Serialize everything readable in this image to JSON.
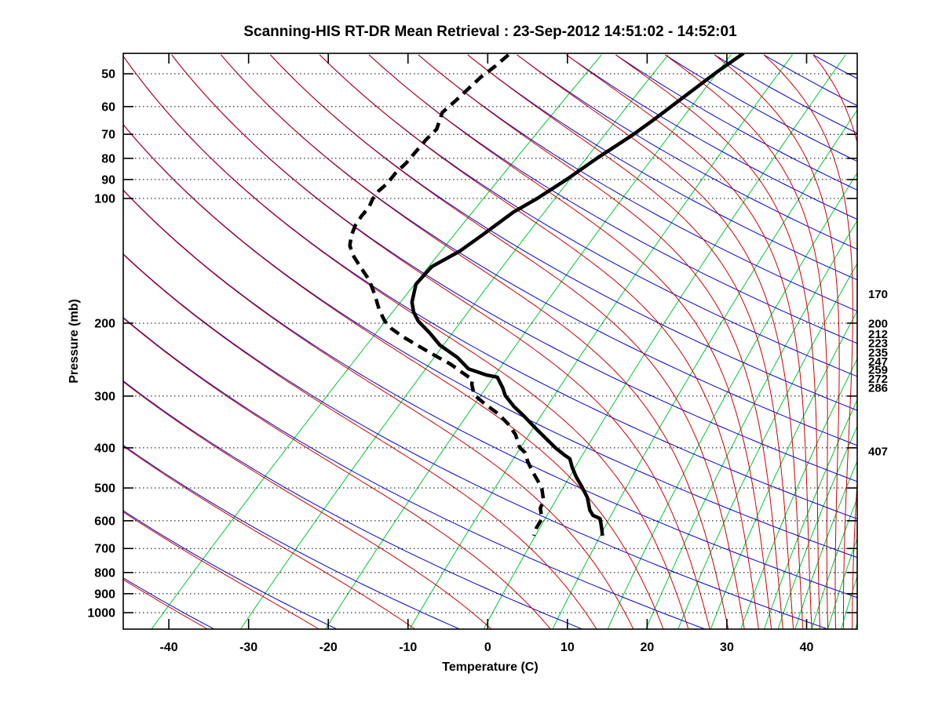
{
  "title": "Scanning-HIS RT-DR Mean Retrieval : 23-Sep-2012 14:51:02 - 14:52:01",
  "axes": {
    "x_label": "Temperature (C)",
    "y_label": "Pressure (mb)",
    "x_ticks": [
      -40,
      -30,
      -20,
      -10,
      0,
      10,
      20,
      30,
      40
    ],
    "y_ticks": [
      50,
      60,
      70,
      80,
      90,
      100,
      200,
      300,
      400,
      500,
      600,
      700,
      800,
      900,
      1000
    ],
    "x_range_C": [
      -45.7,
      46.4
    ],
    "pressure_range_mb": [
      45,
      1100
    ],
    "y_scale": "log"
  },
  "right_pressure_labels": [
    170,
    200,
    212,
    223,
    235,
    247,
    259,
    272,
    286,
    407
  ],
  "chart_data": {
    "type": "line",
    "title": "Scanning-HIS RT-DR Mean Retrieval : 23-Sep-2012 14:51:02 - 14:52:01",
    "xlabel": "Temperature (C)",
    "ylabel": "Pressure (mb)",
    "skew_C_per_decade": 60,
    "note": "Skew-T log-P diagram. Profile points are [pressure_mb, position_on_bottom_temperature_axis_C]; true temperature = position - skew*log10(1000/pressure).",
    "colors": {
      "dry_adiabat": "#0000cc",
      "moist_adiabat": "#cc0000",
      "mixing_ratio": "#00c832",
      "isobar_grid": "#000000",
      "profile": "#000000"
    },
    "background": {
      "dry_adiabats_theta_K": [
        205,
        220,
        235,
        250,
        265,
        280,
        295,
        310,
        325,
        340,
        355,
        370,
        385,
        400,
        415,
        430,
        445,
        460,
        475,
        490,
        505,
        520,
        535,
        550,
        565,
        580
      ],
      "moist_adiabats_thetae_K": [
        205,
        220,
        235,
        250,
        265,
        280,
        295,
        310,
        325,
        340,
        355,
        370,
        385,
        400,
        415,
        430,
        445,
        460,
        475,
        490,
        505,
        520,
        535,
        550,
        565,
        580
      ],
      "mixing_ratio_g_kg": [
        0.11,
        0.33,
        0.85,
        2.0,
        4.0,
        7.3,
        11.5,
        15.6,
        20,
        25.6,
        32,
        38,
        42,
        47.5,
        53.5,
        60,
        66,
        73
      ],
      "isobar_lines_mb": [
        50,
        60,
        70,
        80,
        90,
        100,
        200,
        300,
        400,
        500,
        600,
        700,
        800,
        900,
        1000
      ]
    },
    "series": [
      {
        "name": "temperature",
        "style": "solid",
        "points": [
          [
            44.6,
            32.1
          ],
          [
            49.6,
            28.7
          ],
          [
            56.5,
            24.8
          ],
          [
            64.4,
            20.9
          ],
          [
            70,
            18.3
          ],
          [
            80,
            13.7
          ],
          [
            90,
            9.9
          ],
          [
            100,
            6.2
          ],
          [
            108,
            3.2
          ],
          [
            123,
            -0.8
          ],
          [
            134,
            -3.5
          ],
          [
            146,
            -7.0
          ],
          [
            161,
            -9.0
          ],
          [
            178,
            -9.5
          ],
          [
            188,
            -9.3
          ],
          [
            198,
            -8.7
          ],
          [
            211,
            -7.3
          ],
          [
            226,
            -6.0
          ],
          [
            242,
            -3.8
          ],
          [
            258,
            -2.4
          ],
          [
            267,
            -0.1
          ],
          [
            270,
            1.2
          ],
          [
            287,
            1.9
          ],
          [
            299,
            2.2
          ],
          [
            318,
            3.3
          ],
          [
            336,
            4.6
          ],
          [
            362,
            6.2
          ],
          [
            400,
            8.5
          ],
          [
            416,
            9.6
          ],
          [
            425,
            10.3
          ],
          [
            446,
            10.6
          ],
          [
            470,
            11.1
          ],
          [
            496,
            11.8
          ],
          [
            527,
            12.5
          ],
          [
            565,
            12.8
          ],
          [
            582,
            13.2
          ],
          [
            593,
            14.1
          ],
          [
            627,
            14.3
          ],
          [
            652,
            14.4
          ]
        ]
      },
      {
        "name": "dewpoint",
        "style": "dashed",
        "points": [
          [
            45,
            2.6
          ],
          [
            48,
            0.9
          ],
          [
            51,
            -0.9
          ],
          [
            58,
            -4.0
          ],
          [
            62,
            -5.7
          ],
          [
            68,
            -6.4
          ],
          [
            72,
            -7.7
          ],
          [
            77,
            -9.0
          ],
          [
            82,
            -10.2
          ],
          [
            87,
            -11.6
          ],
          [
            92,
            -12.6
          ],
          [
            96,
            -13.7
          ],
          [
            100,
            -14.4
          ],
          [
            105,
            -14.9
          ],
          [
            110,
            -15.8
          ],
          [
            116,
            -16.6
          ],
          [
            123,
            -17.1
          ],
          [
            130,
            -17.3
          ],
          [
            138,
            -16.8
          ],
          [
            145,
            -16.1
          ],
          [
            151,
            -15.5
          ],
          [
            157,
            -14.9
          ],
          [
            170,
            -14.2
          ],
          [
            186,
            -13.6
          ],
          [
            198,
            -12.9
          ],
          [
            206,
            -12.1
          ],
          [
            216,
            -10.6
          ],
          [
            227,
            -8.7
          ],
          [
            239,
            -6.7
          ],
          [
            251,
            -4.7
          ],
          [
            264,
            -3.1
          ],
          [
            274,
            -1.9
          ],
          [
            281,
            -2.0
          ],
          [
            298,
            -1.7
          ],
          [
            314,
            -0.3
          ],
          [
            332,
            1.4
          ],
          [
            351,
            2.6
          ],
          [
            372,
            3.5
          ],
          [
            399,
            4.0
          ],
          [
            411,
            4.7
          ],
          [
            431,
            5.0
          ],
          [
            456,
            5.6
          ],
          [
            481,
            6.3
          ],
          [
            504,
            6.8
          ],
          [
            536,
            7.0
          ],
          [
            560,
            6.6
          ],
          [
            593,
            6.8
          ],
          [
            625,
            6.1
          ],
          [
            652,
            5.8
          ]
        ]
      }
    ]
  }
}
